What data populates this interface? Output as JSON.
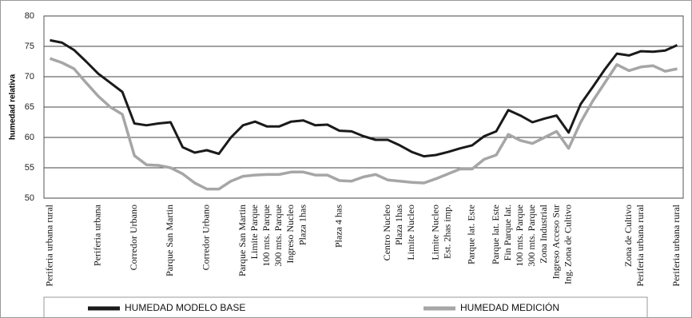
{
  "chart_data": {
    "type": "line",
    "y_label": "humedad relativa",
    "categories": [
      "Periferia  urbana rural",
      null,
      null,
      null,
      "Periferia urbana",
      null,
      null,
      "Corredor Urbano",
      null,
      null,
      "Parque San Martin",
      null,
      null,
      "Corredor Urbano",
      null,
      null,
      "Parque San Martin",
      "Limite Parque",
      "100 mts. Parque",
      "300 mts. Parque",
      "Ingreso Nucleo",
      "Plaza 1has",
      null,
      null,
      "Plaza 4 has",
      null,
      null,
      null,
      "Centro Nucleo",
      "Plaza 1has",
      "Limite Nucleo",
      null,
      "Limite Nucleo",
      "Est. 2has imp.",
      null,
      "Parque lat.  Este",
      null,
      "Parque lat.  Este",
      "Fin Parque lat.",
      "100 mts. Parque",
      "300 mts. Parque",
      "Zona Industrial",
      "Ingreso Acceso Sur",
      "Ing. Zona de Cultivo",
      null,
      null,
      null,
      null,
      "Zona de Cultivo",
      "Periferia urbana rural",
      null,
      null,
      "Periferia urbana rural"
    ],
    "series": [
      {
        "name": "HUMEDAD MODELO BASE",
        "color": "#1a1a1a",
        "values": [
          76,
          75.6,
          74.4,
          72.5,
          70.5,
          69,
          67.5,
          62.3,
          62,
          62.3,
          62.5,
          58.4,
          57.5,
          57.9,
          57.3,
          60,
          62,
          62.6,
          61.8,
          61.8,
          62.6,
          62.8,
          62,
          62.1,
          61.1,
          61,
          60.2,
          59.6,
          59.6,
          58.7,
          57.6,
          56.9,
          57.1,
          57.6,
          58.2,
          58.7,
          60.2,
          61,
          64.5,
          63.6,
          62.5,
          63.1,
          63.6,
          60.8,
          65.5,
          68.3,
          71.2,
          73.8,
          73.5,
          74.2,
          74.1,
          74.3,
          75.2
        ]
      },
      {
        "name": "HUMEDAD MEDICIÓN",
        "color": "#a6a6a6",
        "values": [
          73,
          72.3,
          71.3,
          69,
          66.8,
          65,
          63.8,
          57,
          55.5,
          55.4,
          55,
          54,
          52.5,
          51.5,
          51.5,
          52.8,
          53.6,
          53.8,
          53.9,
          53.9,
          54.3,
          54.3,
          53.8,
          53.8,
          52.9,
          52.8,
          53.5,
          53.9,
          53,
          52.8,
          52.6,
          52.5,
          53.2,
          54,
          54.8,
          54.8,
          56.4,
          57.1,
          60.5,
          59.5,
          59,
          60,
          61,
          58.2,
          62.5,
          66,
          69,
          72,
          71,
          71.6,
          71.8,
          70.9,
          71.3
        ]
      }
    ],
    "ylim": [
      50,
      80
    ],
    "yticks": [
      50,
      55,
      60,
      65,
      70,
      75,
      80
    ],
    "grid": true,
    "legend": "bottom"
  }
}
